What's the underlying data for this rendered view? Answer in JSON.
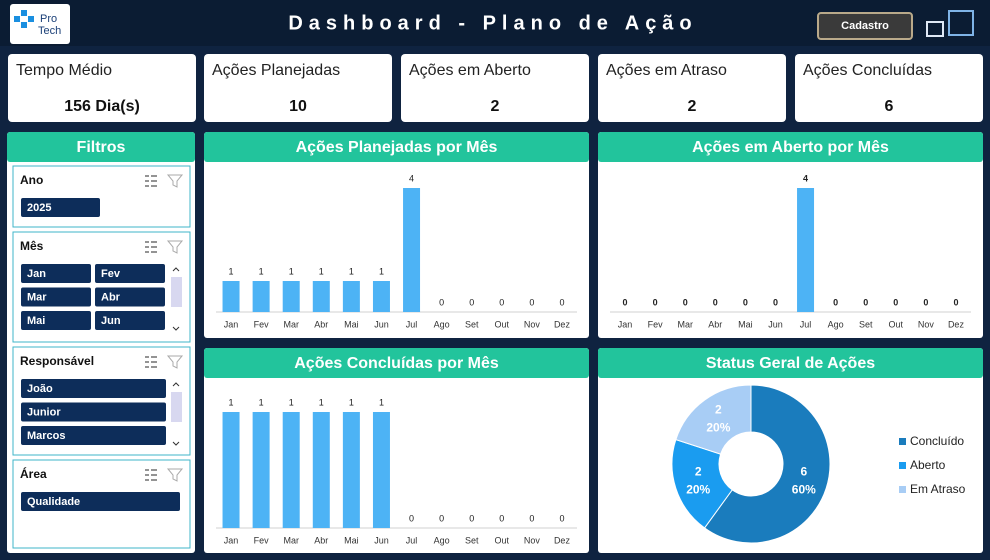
{
  "header": {
    "logo": [
      "Pro",
      "Tech"
    ],
    "title": "Dashboard - Plano de Ação",
    "button": "Cadastro"
  },
  "kpis": [
    {
      "label": "Tempo Médio",
      "value": "156 Dia(s)"
    },
    {
      "label": "Ações Planejadas",
      "value": 10
    },
    {
      "label": "Ações em Aberto",
      "value": 2
    },
    {
      "label": "Ações em Atraso",
      "value": 2
    },
    {
      "label": "Ações Concluídas",
      "value": 6
    }
  ],
  "filters": {
    "title": "Filtros",
    "groups": [
      {
        "label": "Ano",
        "items": [
          "2025"
        ]
      },
      {
        "label": "Mês",
        "items": [
          "Jan",
          "Fev",
          "Mar",
          "Abr",
          "Mai",
          "Jun"
        ]
      },
      {
        "label": "Responsável",
        "items": [
          "João",
          "Junior",
          "Marcos"
        ]
      },
      {
        "label": "Área",
        "items": [
          "Qualidade"
        ]
      }
    ]
  },
  "chart_data": [
    {
      "type": "bar",
      "title": "Ações Planejadas por Mês",
      "categories": [
        "Jan",
        "Fev",
        "Mar",
        "Abr",
        "Mai",
        "Jun",
        "Jul",
        "Ago",
        "Set",
        "Out",
        "Nov",
        "Dez"
      ],
      "values": [
        1,
        1,
        1,
        1,
        1,
        1,
        4,
        0,
        0,
        0,
        0,
        0
      ],
      "color": "#4db3f5"
    },
    {
      "type": "bar",
      "title": "Ações em Aberto por Mês",
      "categories": [
        "Jan",
        "Fev",
        "Mar",
        "Abr",
        "Mai",
        "Jun",
        "Jul",
        "Ago",
        "Set",
        "Out",
        "Nov",
        "Dez"
      ],
      "values": [
        0,
        0,
        0,
        0,
        0,
        0,
        4,
        0,
        0,
        0,
        0,
        0
      ],
      "color": "#4db3f5"
    },
    {
      "type": "bar",
      "title": "Ações Concluídas por Mês",
      "categories": [
        "Jan",
        "Fev",
        "Mar",
        "Abr",
        "Mai",
        "Jun",
        "Jul",
        "Ago",
        "Set",
        "Out",
        "Nov",
        "Dez"
      ],
      "values": [
        1,
        1,
        1,
        1,
        1,
        1,
        0,
        0,
        0,
        0,
        0,
        0
      ],
      "color": "#4db3f5"
    },
    {
      "type": "pie",
      "title": "Status Geral de Ações",
      "categories": [
        "Concluído",
        "Aberto",
        "Em Atraso"
      ],
      "values": [
        6,
        2,
        2
      ],
      "percent_labels": [
        "60%",
        "20%",
        "20%"
      ],
      "colors": [
        "#1a7cbd",
        "#1a9cf0",
        "#a8cdf5"
      ]
    }
  ]
}
